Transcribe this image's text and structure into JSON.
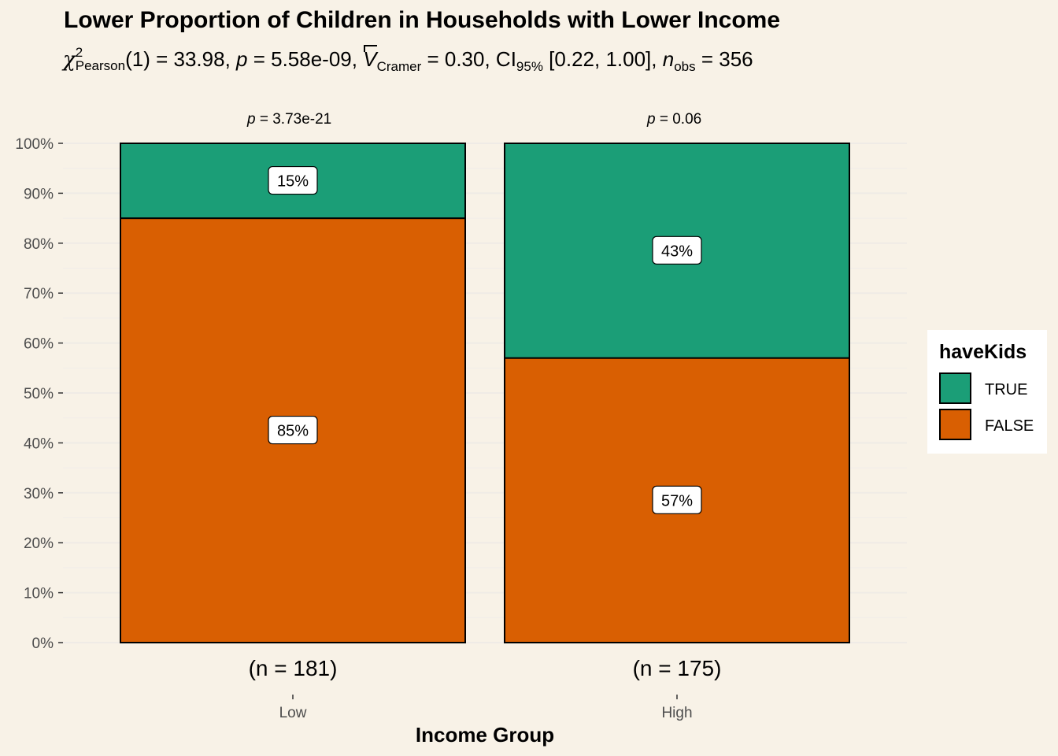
{
  "title": "Lower Proportion of Children in Households with Lower Income",
  "subtitle": {
    "chi_symbol": "χ",
    "chi_sup": "2",
    "chi_sub": "Pearson",
    "df_part": "(1) = 33.98, ",
    "p_label": "p",
    "p_part": " = 5.58e-09, ",
    "v_label": "V",
    "v_sub": "Cramer",
    "v_part": " = 0.30, CI",
    "ci_sub": "95%",
    "ci_part": " [0.22, 1.00], ",
    "n_label": "n",
    "n_sub": "obs",
    "n_part": " = 356"
  },
  "colors": {
    "background": "#f8f2e7",
    "true": "#1b9e77",
    "false": "#d95f02",
    "grid": "#efebe6"
  },
  "legend": {
    "title": "haveKids",
    "items": [
      {
        "label": "TRUE",
        "color": "#1b9e77"
      },
      {
        "label": "FALSE",
        "color": "#d95f02"
      }
    ]
  },
  "chart_data": {
    "type": "bar",
    "stacked": true,
    "title": "Lower Proportion of Children in Households with Lower Income",
    "xlabel": "Income Group",
    "ylabel": "",
    "ylim": [
      0,
      100
    ],
    "y_ticks": [
      "0%",
      "10%",
      "20%",
      "30%",
      "40%",
      "50%",
      "60%",
      "70%",
      "80%",
      "90%",
      "100%"
    ],
    "categories": [
      "Low",
      "High"
    ],
    "counts": [
      "(n = 181)",
      "(n = 175)"
    ],
    "p_values": [
      "3.73e-21",
      "0.06"
    ],
    "series": [
      {
        "name": "FALSE",
        "values": [
          85,
          57
        ],
        "labels": [
          "85%",
          "57%"
        ]
      },
      {
        "name": "TRUE",
        "values": [
          15,
          43
        ],
        "labels": [
          "15%",
          "43%"
        ]
      }
    ],
    "legend_position": "right"
  }
}
